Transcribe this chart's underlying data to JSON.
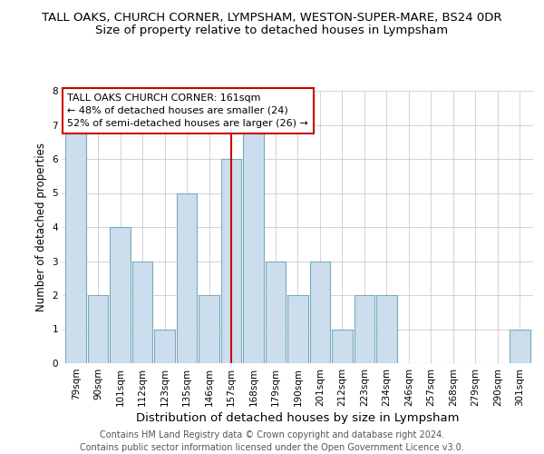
{
  "title": "TALL OAKS, CHURCH CORNER, LYMPSHAM, WESTON-SUPER-MARE, BS24 0DR",
  "subtitle": "Size of property relative to detached houses in Lympsham",
  "xlabel": "Distribution of detached houses by size in Lympsham",
  "ylabel": "Number of detached properties",
  "bin_labels": [
    "79sqm",
    "90sqm",
    "101sqm",
    "112sqm",
    "123sqm",
    "135sqm",
    "146sqm",
    "157sqm",
    "168sqm",
    "179sqm",
    "190sqm",
    "201sqm",
    "212sqm",
    "223sqm",
    "234sqm",
    "246sqm",
    "257sqm",
    "268sqm",
    "279sqm",
    "290sqm",
    "301sqm"
  ],
  "bin_counts": [
    7,
    2,
    4,
    3,
    1,
    5,
    2,
    6,
    7,
    3,
    2,
    3,
    1,
    2,
    2,
    0,
    0,
    0,
    0,
    0,
    1
  ],
  "bar_color": "#ccdded",
  "bar_edge_color": "#7aaabb",
  "vline_color": "#cc0000",
  "vline_bin_index": 7,
  "annotation_title": "TALL OAKS CHURCH CORNER: 161sqm",
  "annotation_line1": "← 48% of detached houses are smaller (24)",
  "annotation_line2": "52% of semi-detached houses are larger (26) →",
  "annotation_box_color": "#cc0000",
  "ylim": [
    0,
    8
  ],
  "yticks": [
    0,
    1,
    2,
    3,
    4,
    5,
    6,
    7,
    8
  ],
  "footer_line1": "Contains HM Land Registry data © Crown copyright and database right 2024.",
  "footer_line2": "Contains public sector information licensed under the Open Government Licence v3.0.",
  "title_fontsize": 9.5,
  "subtitle_fontsize": 9.5,
  "xlabel_fontsize": 9.5,
  "ylabel_fontsize": 8.5,
  "annot_fontsize": 8.0,
  "tick_fontsize": 7.5,
  "footer_fontsize": 7.0
}
